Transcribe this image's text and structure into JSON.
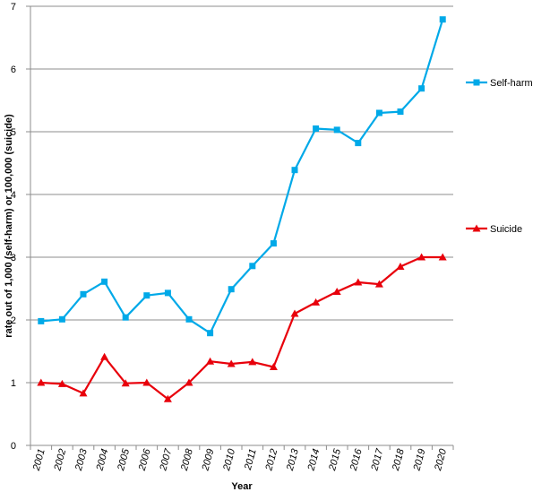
{
  "chart_data": {
    "type": "line",
    "title": "",
    "xlabel": "Year",
    "ylabel": "rate out of 1,000 (self-harm) or 100,000 (suicide)",
    "ylim": [
      0,
      7
    ],
    "yticks": [
      "0",
      "1",
      "2",
      "3",
      "4",
      "5",
      "6",
      "7"
    ],
    "grid": "horizontal",
    "legend_placement": "right",
    "categories": [
      "2001",
      "2002",
      "2003",
      "2004",
      "2005",
      "2006",
      "2007",
      "2008",
      "2009",
      "2010",
      "2011",
      "2012",
      "2013",
      "2014",
      "2015",
      "2016",
      "2017",
      "2018",
      "2019",
      "2020"
    ],
    "series": [
      {
        "name": "Self-harm",
        "color": "#00a9e8",
        "marker": "square",
        "values": [
          1.98,
          2.01,
          2.41,
          2.61,
          2.04,
          2.39,
          2.43,
          2.01,
          1.79,
          2.49,
          2.86,
          3.22,
          4.39,
          5.05,
          5.03,
          4.82,
          5.3,
          5.32,
          5.69,
          6.79
        ]
      },
      {
        "name": "Suicide",
        "color": "#e8000b",
        "marker": "triangle",
        "values": [
          1.0,
          0.98,
          0.83,
          1.41,
          0.99,
          1.0,
          0.74,
          1.0,
          1.34,
          1.3,
          1.33,
          1.25,
          2.1,
          2.28,
          2.45,
          2.6,
          2.57,
          2.85,
          3.0,
          3.0
        ]
      }
    ]
  }
}
